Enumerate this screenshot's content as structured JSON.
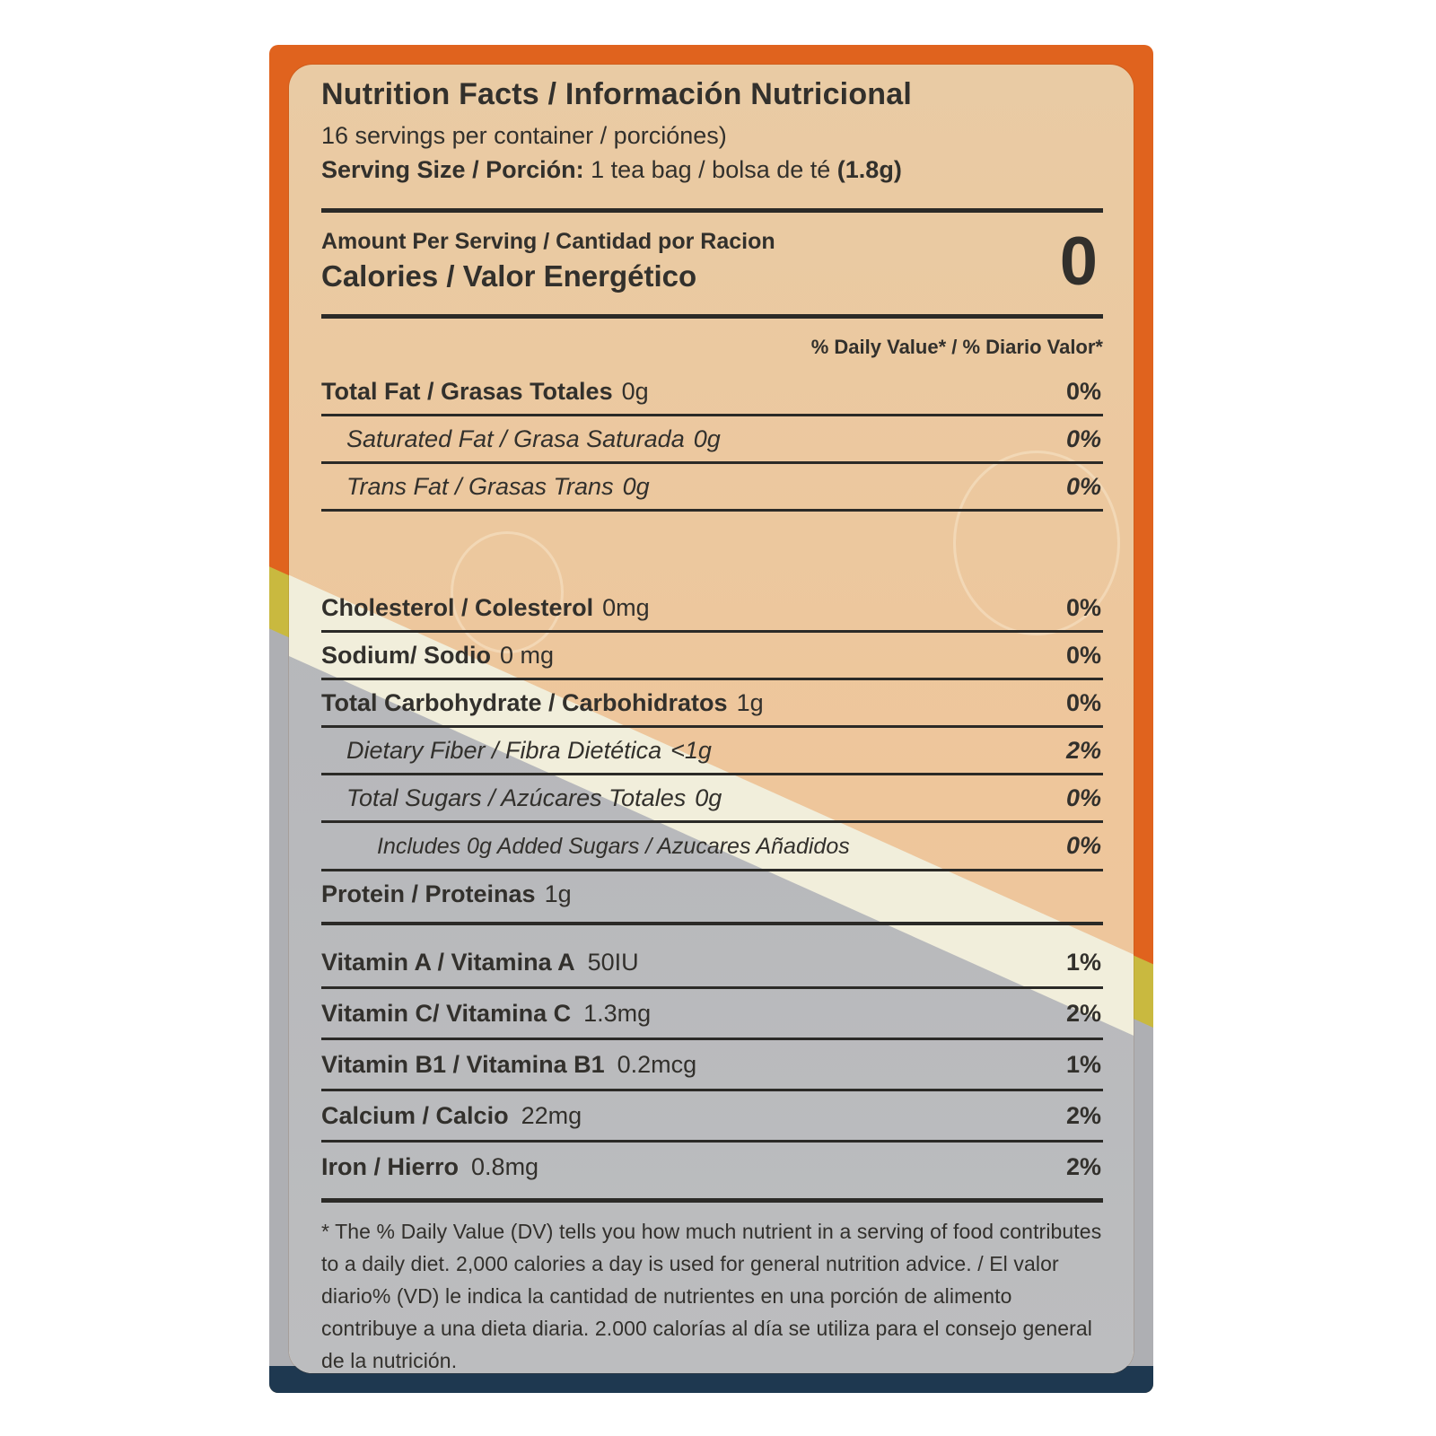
{
  "header": {
    "title": "Nutrition Facts / Información Nutricional",
    "servings_line": "16 servings per container / porciónes)",
    "serving_size_label": "Serving Size / Porción:",
    "serving_size_value": " 1 tea bag / bolsa de té ",
    "serving_size_weight": "(1.8g)"
  },
  "calories": {
    "amount_per_serving_label": "Amount Per Serving / Cantidad por Racion",
    "calories_label": "Calories / Valor Energético",
    "calories_value": "0"
  },
  "daily_value_header": "% Daily Value* / % Diario Valor*",
  "nutrients": [
    {
      "name": "Total Fat / Grasas Totales",
      "amount": "0g",
      "dv": "0%"
    },
    {
      "name": "Saturated Fat / Grasa Saturada",
      "amount": "0g",
      "dv": "0%"
    },
    {
      "name": "Trans Fat / Grasas Trans",
      "amount": "0g",
      "dv": "0%"
    },
    {
      "name": "Cholesterol / Colesterol",
      "amount": "0mg",
      "dv": "0%"
    },
    {
      "name": "Sodium/ Sodio",
      "amount": "0 mg",
      "dv": "0%"
    },
    {
      "name": "Total Carbohydrate / Carbohidratos",
      "amount": "1g",
      "dv": "0%"
    },
    {
      "name": "Dietary Fiber / Fibra Dietética",
      "amount": "<1g",
      "dv": "2%"
    },
    {
      "name": "Total Sugars / Azúcares Totales",
      "amount": "0g",
      "dv": "0%"
    },
    {
      "name": "Includes 0g Added Sugars / Azucares Añadidos",
      "amount": "",
      "dv": "0%"
    },
    {
      "name": "Protein / Proteinas",
      "amount": "1g",
      "dv": ""
    }
  ],
  "vitamins": [
    {
      "name": "Vitamin A / Vitamina A",
      "amount": "50IU",
      "dv": "1%"
    },
    {
      "name": "Vitamin C/ Vitamina C",
      "amount": "1.3mg",
      "dv": "2%"
    },
    {
      "name": "Vitamin B1 / Vitamina B1",
      "amount": "0.2mcg",
      "dv": "1%"
    },
    {
      "name": "Calcium / Calcio",
      "amount": "22mg",
      "dv": "2%"
    },
    {
      "name": "Iron / Hierro",
      "amount": "0.8mg",
      "dv": "2%"
    }
  ],
  "footnote": "* The % Daily Value (DV) tells you how much nutrient in a serving of food contributes to a daily diet. 2,000 calories a day is used for general nutrition advice. / El valor diario% (VD) le indica la cantidad de nutrientes en una porción de alimento contribuye a una dieta diaria. 2.000 calorías al día se utiliza para el consejo general de la nutrición.",
  "colors": {
    "package_orange": "#e0631e",
    "package_navy": "#1e3850",
    "label_peach": "#eec69b",
    "label_cream": "#f1eedb",
    "label_gray": "#b5b6b9",
    "text": "#32302c"
  }
}
